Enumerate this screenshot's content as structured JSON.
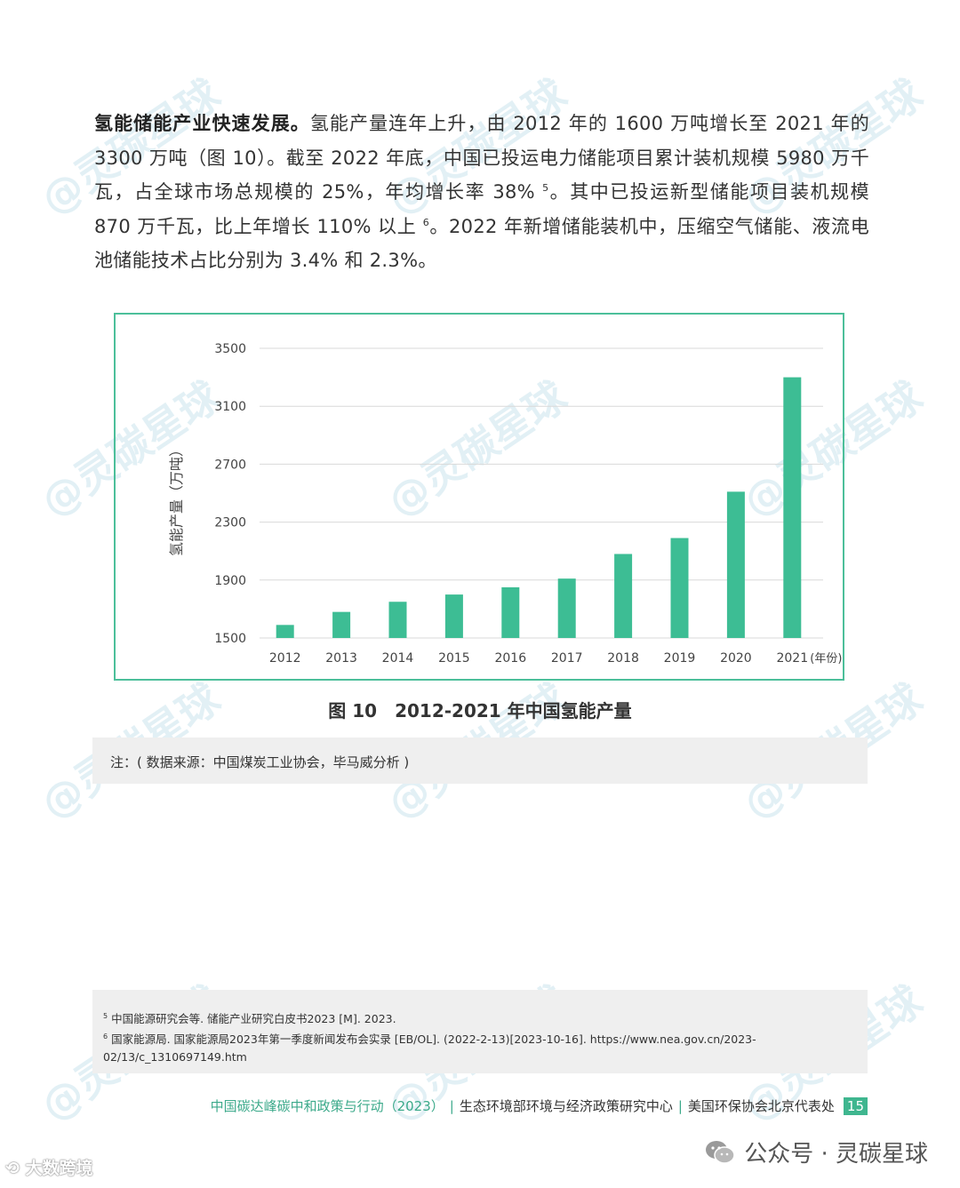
{
  "paragraph": {
    "lead": "氢能储能产业快速发展。",
    "part1": "氢能产量连年上升，由 2012 年的 1600 万吨增长至 2021 年的 3300 万吨（图 10）。截至 2022 年底，中国已投运电力储能项目累计装机规模 5980 万千瓦，占全球市场总规模的 25%，年均增长率 38% ",
    "ref1": "5",
    "part2": "。其中已投运新型储能项目装机规模 870 万千瓦，比上年增长 110% 以上 ",
    "ref2": "6",
    "part3": "。2022 年新增储能装机中，压缩空气储能、液流电池储能技术占比分别为 3.4% 和 2.3%。"
  },
  "chart_data": {
    "type": "bar",
    "categories": [
      "2012",
      "2013",
      "2014",
      "2015",
      "2016",
      "2017",
      "2018",
      "2019",
      "2020",
      "2021"
    ],
    "values": [
      1590,
      1680,
      1750,
      1800,
      1850,
      1910,
      2080,
      2190,
      2510,
      3300
    ],
    "ylabel": "氢能产量（万吨）",
    "x_unit": "(年份)",
    "ylim": [
      1500,
      3500
    ],
    "yticks": [
      "3500",
      "3100",
      "2700",
      "2300",
      "1900",
      "1500"
    ],
    "bar_color": "#3dbd94",
    "grid": true
  },
  "figure_caption": "图 10　2012-2021 年中国氢能产量",
  "note": "注：( 数据来源：中国煤炭工业协会，毕马威分析 )",
  "footnotes": [
    {
      "num": "5",
      "text": "中国能源研究会等. 储能产业研究白皮书2023 [M]. 2023."
    },
    {
      "num": "6",
      "text": "国家能源局. 国家能源局2023年第一季度新闻发布会实录 [EB/OL]. (2022-2-13)[2023-10-16]. https://www.nea.gov.cn/2023-02/13/c_1310697149.htm"
    }
  ],
  "footer": {
    "title": "中国碳达峰碳中和政策与行动（2023）",
    "org1": "生态环境部环境与经济政策研究中心",
    "org2": "美国环保协会北京代表处",
    "separator": "|",
    "page": "15"
  },
  "wechat": {
    "icon": "wechat-icon",
    "text": "公众号 · 灵碳星球"
  },
  "corner_logo": "大数跨境",
  "watermark_text": "@灵碳星球",
  "colors": {
    "accent": "#3dbd94",
    "border": "#4cbf9a",
    "note_bg": "#efefef"
  }
}
